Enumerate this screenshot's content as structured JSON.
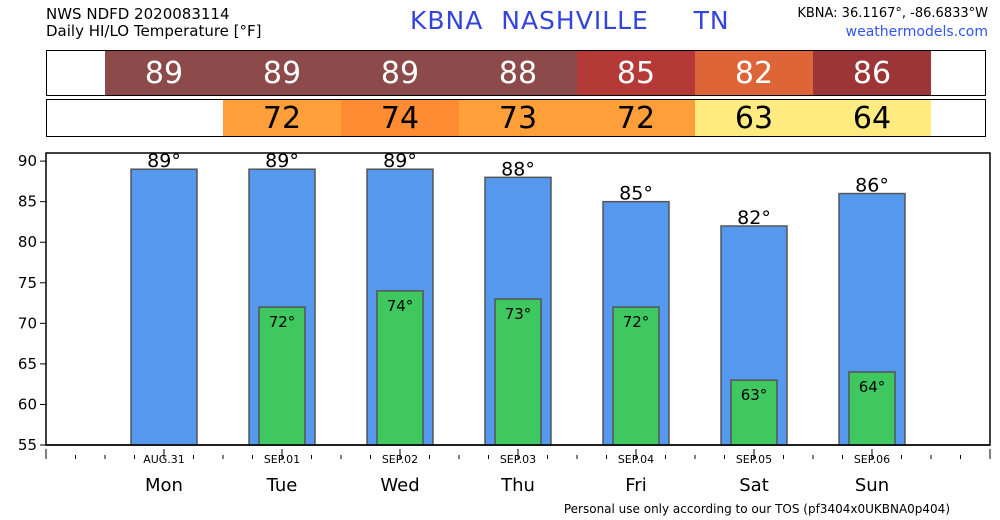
{
  "header": {
    "line1": "NWS NDFD 2020083114",
    "line2": "Daily HI/LO Temperature [°F]",
    "station": "KBNA  NASHVILLE     TN",
    "coords": "KBNA: 36.1167°, -86.6833°W",
    "site": "weathermodels.com"
  },
  "footer": "Personal use only according to our TOS (pf3404x0UKBNA0p404)",
  "chart_data": {
    "type": "bar",
    "categories": [
      "Mon",
      "Tue",
      "Wed",
      "Thu",
      "Fri",
      "Sat",
      "Sun"
    ],
    "dates": [
      "AUG.31",
      "SEP.01",
      "SEP.02",
      "SEP.03",
      "SEP.04",
      "SEP.05",
      "SEP.06"
    ],
    "series": [
      {
        "values": [
          89,
          89,
          89,
          88,
          85,
          82,
          86
        ],
        "color": "#5599ee"
      },
      {
        "values": [
          null,
          72,
          74,
          73,
          72,
          63,
          64
        ],
        "color": "#3fc85f"
      }
    ],
    "hi_strip_colors": [
      "#8c4a4a",
      "#8c4a4a",
      "#8c4a4a",
      "#8c4a4a",
      "#b53a37",
      "#dd6537",
      "#9c3535"
    ],
    "lo_strip_colors": [
      null,
      "#ff9f3a",
      "#ff8c32",
      "#ff9f3a",
      "#ff9f3a",
      "#ffeb80",
      "#ffeb80"
    ],
    "degree_symbol": "°",
    "yticks": [
      55,
      60,
      65,
      70,
      75,
      80,
      85,
      90
    ],
    "ylim": [
      55,
      91
    ]
  }
}
